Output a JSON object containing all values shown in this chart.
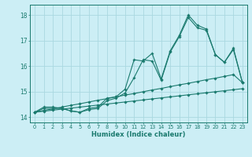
{
  "xlabel": "Humidex (Indice chaleur)",
  "background_color": "#cceef5",
  "grid_color": "#aad8e0",
  "line_color": "#1a7a6e",
  "xlim": [
    -0.5,
    23.5
  ],
  "ylim": [
    13.8,
    18.4
  ],
  "x_ticks": [
    0,
    1,
    2,
    3,
    4,
    5,
    6,
    7,
    8,
    9,
    10,
    11,
    12,
    13,
    14,
    15,
    16,
    17,
    18,
    19,
    20,
    21,
    22,
    23
  ],
  "yticks": [
    14,
    15,
    16,
    17,
    18
  ],
  "series1": [
    14.2,
    14.4,
    14.4,
    14.35,
    14.25,
    14.2,
    14.35,
    14.4,
    14.75,
    14.8,
    15.1,
    16.25,
    16.2,
    16.5,
    15.5,
    16.6,
    17.2,
    18.0,
    17.6,
    17.45,
    16.45,
    16.15,
    16.7,
    15.35
  ],
  "series2": [
    14.2,
    14.35,
    14.35,
    14.35,
    14.25,
    14.2,
    14.3,
    14.35,
    14.65,
    14.75,
    14.95,
    15.55,
    16.25,
    16.2,
    15.45,
    16.55,
    17.15,
    17.9,
    17.5,
    17.4,
    16.45,
    16.15,
    16.65,
    15.35
  ],
  "series3_linear": [
    14.2,
    14.27,
    14.33,
    14.4,
    14.47,
    14.53,
    14.6,
    14.67,
    14.73,
    14.8,
    14.87,
    14.93,
    15.0,
    15.07,
    15.13,
    15.2,
    15.27,
    15.33,
    15.4,
    15.47,
    15.53,
    15.6,
    15.67,
    15.35
  ],
  "series4_linear": [
    14.2,
    14.24,
    14.28,
    14.32,
    14.36,
    14.4,
    14.44,
    14.48,
    14.52,
    14.56,
    14.6,
    14.64,
    14.68,
    14.72,
    14.76,
    14.8,
    14.84,
    14.88,
    14.92,
    14.96,
    15.0,
    15.04,
    15.08,
    15.12
  ]
}
